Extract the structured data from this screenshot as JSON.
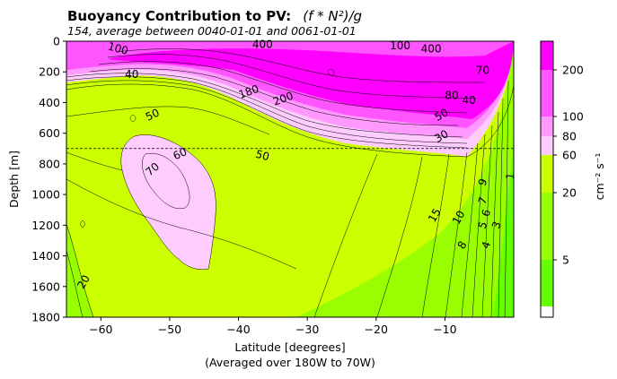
{
  "chart_data": {
    "type": "contour",
    "title": "Buoyancy Contribution to PV:",
    "title_expression": "(f * N²)/g",
    "subtitle": "154, average between 0040-01-01 and 0061-01-01",
    "xlabel": "Latitude [deegrees]",
    "xlabel_note": "(Averaged over 180W to 70W)",
    "ylabel": "Depth [m]",
    "xlim": [
      -65,
      0
    ],
    "ylim": [
      1800,
      0
    ],
    "x_ticks": [
      -60,
      -50,
      -40,
      -30,
      -20,
      -10
    ],
    "x_tick_labels": [
      "−60",
      "−50",
      "−40",
      "−30",
      "−20",
      "−10"
    ],
    "y_ticks": [
      0,
      200,
      400,
      600,
      800,
      1000,
      1200,
      1400,
      1600,
      1800
    ],
    "y_tick_labels": [
      "0",
      "200",
      "400",
      "600",
      "800",
      "1000",
      "1200",
      "1400",
      "1600",
      "1800"
    ],
    "dashed_line_depth": 700,
    "colorbar": {
      "label": "cm⁻² s⁻¹",
      "ticks": [
        5,
        20,
        60,
        80,
        100,
        200
      ],
      "tick_labels": [
        "5",
        "20",
        "60",
        "80",
        "100",
        "200"
      ],
      "band_colors": [
        "#ffffff",
        "#66ff00",
        "#99ff00",
        "#ccff00",
        "#ffccff",
        "#ff99ff",
        "#ff55ff",
        "#ff00ff"
      ]
    },
    "contour_labels": [
      {
        "text": "40",
        "x": -55.5,
        "y": 215,
        "rot": 0
      },
      {
        "text": "50",
        "x": -52.5,
        "y": 480,
        "rot": -25
      },
      {
        "text": "60",
        "x": -48.5,
        "y": 735,
        "rot": -25
      },
      {
        "text": "70",
        "x": -52.5,
        "y": 835,
        "rot": -40
      },
      {
        "text": "50",
        "x": -36.5,
        "y": 745,
        "rot": 15
      },
      {
        "text": "180",
        "x": -38.5,
        "y": 330,
        "rot": -20
      },
      {
        "text": "200",
        "x": -33.5,
        "y": 375,
        "rot": -20
      },
      {
        "text": "100",
        "x": -57.5,
        "y": 48,
        "rot": 15
      },
      {
        "text": "400",
        "x": -36.5,
        "y": 20,
        "rot": 0
      },
      {
        "text": "400",
        "x": -12,
        "y": 50,
        "rot": 0
      },
      {
        "text": "100",
        "x": -16.5,
        "y": 28,
        "rot": 0
      },
      {
        "text": "70",
        "x": -4.5,
        "y": 190,
        "rot": 0
      },
      {
        "text": "80",
        "x": -9,
        "y": 355,
        "rot": 0
      },
      {
        "text": "40",
        "x": -6.5,
        "y": 385,
        "rot": 0
      },
      {
        "text": "50",
        "x": -10.5,
        "y": 480,
        "rot": -30
      },
      {
        "text": "30",
        "x": -10.5,
        "y": 620,
        "rot": -30
      },
      {
        "text": "15",
        "x": -11.5,
        "y": 1135,
        "rot": -60
      },
      {
        "text": "10",
        "x": -8,
        "y": 1150,
        "rot": -60
      },
      {
        "text": "9",
        "x": -4.5,
        "y": 920,
        "rot": -70
      },
      {
        "text": "7",
        "x": -4.5,
        "y": 1040,
        "rot": -70
      },
      {
        "text": "6",
        "x": -4,
        "y": 1120,
        "rot": -70
      },
      {
        "text": "5",
        "x": -4.5,
        "y": 1200,
        "rot": -70
      },
      {
        "text": "3",
        "x": -2.5,
        "y": 1200,
        "rot": -70
      },
      {
        "text": "8",
        "x": -7.5,
        "y": 1330,
        "rot": -60
      },
      {
        "text": "4",
        "x": -4,
        "y": 1330,
        "rot": -70
      },
      {
        "text": "1",
        "x": -0.5,
        "y": 880,
        "rot": -85
      },
      {
        "text": "20",
        "x": -62.5,
        "y": 1570,
        "rot": -60
      }
    ]
  }
}
